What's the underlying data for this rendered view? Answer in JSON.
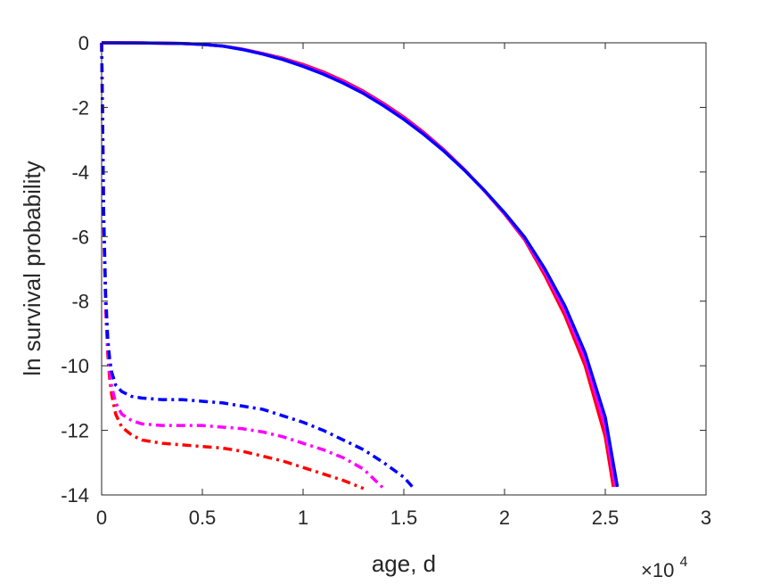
{
  "chart_data": {
    "type": "line",
    "title": "",
    "xlabel": "age, d",
    "ylabel": "ln survival probability",
    "x_multiplier": "×10",
    "x_multiplier_exponent": "4",
    "xlim": [
      0,
      30000
    ],
    "ylim": [
      -14,
      0
    ],
    "x_ticks": [
      0,
      5000,
      10000,
      15000,
      20000,
      25000,
      30000
    ],
    "x_tick_labels": [
      "0",
      "0.5",
      "1",
      "1.5",
      "2",
      "2.5",
      "3"
    ],
    "y_ticks": [
      0,
      -2,
      -4,
      -6,
      -8,
      -10,
      -12,
      -14
    ],
    "y_tick_labels": [
      "0",
      "-2",
      "-4",
      "-6",
      "-8",
      "-10",
      "-12",
      "-14"
    ],
    "grid": false,
    "box": true,
    "series": [
      {
        "style": "dashdot",
        "color": "#ff0000",
        "x": [
          0,
          50,
          100,
          200,
          300,
          400,
          500,
          700,
          1000,
          1500,
          2000,
          3000,
          4000,
          5000,
          6000,
          7000,
          8000,
          9000,
          10000,
          11000,
          12000,
          13000
        ],
        "y": [
          0,
          -2.5,
          -5.5,
          -8.2,
          -9.6,
          -10.4,
          -10.9,
          -11.5,
          -11.9,
          -12.15,
          -12.3,
          -12.4,
          -12.45,
          -12.5,
          -12.55,
          -12.65,
          -12.8,
          -12.95,
          -13.15,
          -13.35,
          -13.55,
          -13.8
        ]
      },
      {
        "style": "dashdot",
        "color": "#ff00ff",
        "x": [
          0,
          50,
          100,
          200,
          300,
          400,
          500,
          700,
          1000,
          1500,
          2000,
          3000,
          4000,
          5000,
          6000,
          7000,
          8000,
          9000,
          10000,
          11000,
          12000,
          13000,
          14000
        ],
        "y": [
          0,
          -2.5,
          -5.4,
          -8.1,
          -9.4,
          -10.2,
          -10.65,
          -11.15,
          -11.5,
          -11.7,
          -11.8,
          -11.85,
          -11.85,
          -11.85,
          -11.9,
          -11.95,
          -12.05,
          -12.2,
          -12.4,
          -12.6,
          -12.85,
          -13.2,
          -13.8
        ]
      },
      {
        "style": "dashdot",
        "color": "#0000ff",
        "x": [
          0,
          50,
          100,
          200,
          300,
          400,
          500,
          700,
          1000,
          1500,
          2000,
          3000,
          4000,
          5000,
          6000,
          7000,
          8000,
          9000,
          10000,
          11000,
          12000,
          13000,
          14000,
          15000,
          15500
        ],
        "y": [
          0,
          -2.5,
          -5.2,
          -7.8,
          -9.1,
          -9.8,
          -10.2,
          -10.6,
          -10.8,
          -10.95,
          -11.0,
          -11.05,
          -11.05,
          -11.1,
          -11.15,
          -11.25,
          -11.35,
          -11.55,
          -11.75,
          -12.0,
          -12.3,
          -12.6,
          -13.0,
          -13.45,
          -13.8
        ]
      },
      {
        "style": "solid",
        "color": "#ff0000",
        "x": [
          0,
          2000,
          4000,
          5000,
          6000,
          7000,
          8000,
          9000,
          10000,
          11000,
          12000,
          13000,
          14000,
          15000,
          16000,
          17000,
          18000,
          19000,
          20000,
          21000,
          22000,
          23000,
          24000,
          25000,
          25400
        ],
        "y": [
          0,
          -0.005,
          -0.02,
          -0.05,
          -0.1,
          -0.2,
          -0.33,
          -0.48,
          -0.67,
          -0.9,
          -1.18,
          -1.5,
          -1.88,
          -2.3,
          -2.78,
          -3.32,
          -3.92,
          -4.58,
          -5.3,
          -6.1,
          -7.2,
          -8.45,
          -10.0,
          -12.2,
          -13.75
        ]
      },
      {
        "style": "solid",
        "color": "#ff00ff",
        "x": [
          0,
          2000,
          4000,
          5000,
          6000,
          7000,
          8000,
          9000,
          10000,
          11000,
          12000,
          13000,
          14000,
          15000,
          16000,
          17000,
          18000,
          19000,
          20000,
          21000,
          22000,
          23000,
          24000,
          25000,
          25500
        ],
        "y": [
          0,
          -0.005,
          -0.02,
          -0.05,
          -0.1,
          -0.2,
          -0.34,
          -0.5,
          -0.7,
          -0.93,
          -1.21,
          -1.53,
          -1.91,
          -2.33,
          -2.81,
          -3.34,
          -3.93,
          -4.58,
          -5.29,
          -6.07,
          -7.1,
          -8.3,
          -9.8,
          -11.9,
          -13.75
        ]
      },
      {
        "style": "solid",
        "color": "#0000ff",
        "x": [
          0,
          2000,
          4000,
          5000,
          6000,
          7000,
          8000,
          9000,
          10000,
          11000,
          12000,
          13000,
          14000,
          15000,
          16000,
          17000,
          18000,
          19000,
          20000,
          21000,
          22000,
          23000,
          24000,
          25000,
          25600
        ],
        "y": [
          0,
          -0.005,
          -0.02,
          -0.05,
          -0.1,
          -0.21,
          -0.35,
          -0.52,
          -0.73,
          -0.97,
          -1.25,
          -1.57,
          -1.95,
          -2.37,
          -2.84,
          -3.36,
          -3.94,
          -4.57,
          -5.26,
          -6.02,
          -7.0,
          -8.15,
          -9.6,
          -11.6,
          -13.75
        ]
      }
    ]
  }
}
